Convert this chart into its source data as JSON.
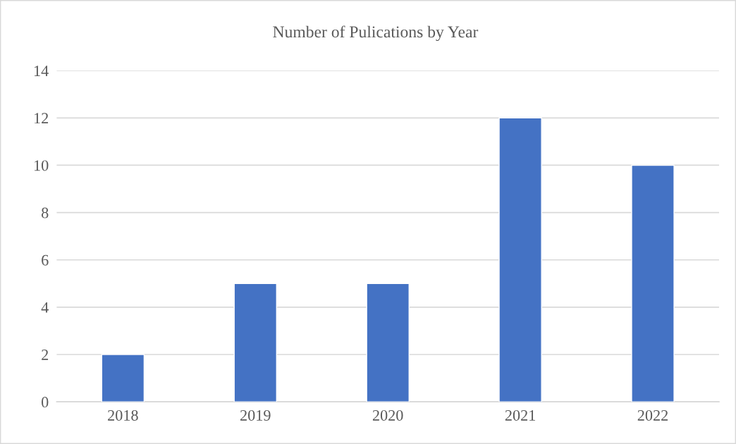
{
  "chart_data": {
    "type": "bar",
    "title": "Number of Pulications by Year",
    "categories": [
      "2018",
      "2019",
      "2020",
      "2021",
      "2022"
    ],
    "values": [
      2,
      5,
      5,
      12,
      10
    ],
    "color": "#4472c4",
    "ylim": [
      0,
      14
    ],
    "yticks": [
      0,
      2,
      4,
      6,
      8,
      10,
      12,
      14
    ],
    "grid": "y"
  }
}
